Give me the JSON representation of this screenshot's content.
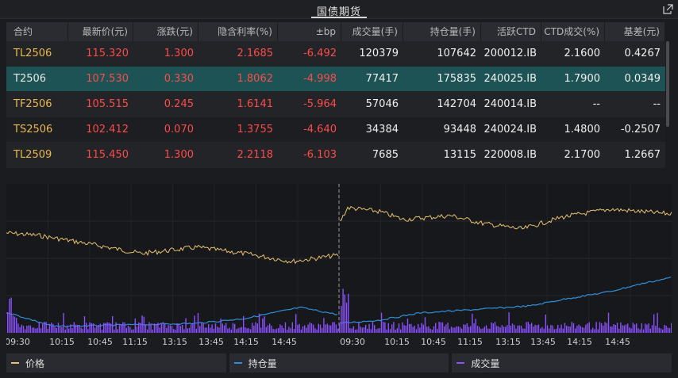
{
  "window": {
    "title": "国债期货",
    "popout_icon": "popout-icon"
  },
  "table": {
    "headers": [
      "合约",
      "最新价(元)",
      "涨跌(元)",
      "隐含利率(%)",
      "±bp",
      "成交量(手)",
      "持仓量(手)",
      "活跃CTD",
      "CTD成交(%)",
      "基差(元)"
    ],
    "rows": [
      [
        "TL2506",
        "115.320",
        "1.300",
        "2.1685",
        "-6.492",
        "120379",
        "107642",
        "200012.IB",
        "2.1600",
        "0.4267"
      ],
      [
        "T2506",
        "107.530",
        "0.330",
        "1.8062",
        "-4.998",
        "77417",
        "175835",
        "240025.IB",
        "1.7900",
        "0.0349"
      ],
      [
        "TF2506",
        "105.515",
        "0.245",
        "1.6141",
        "-5.964",
        "57046",
        "142704",
        "240014.IB",
        "--",
        "--"
      ],
      [
        "TS2506",
        "102.412",
        "0.070",
        "1.3755",
        "-4.640",
        "34384",
        "93448",
        "240024.IB",
        "1.4800",
        "-0.2507"
      ],
      [
        "TL2509",
        "115.450",
        "1.300",
        "2.2118",
        "-6.103",
        "7685",
        "13115",
        "220008.IB",
        "2.1700",
        "1.2667"
      ]
    ],
    "selected_row": 1
  },
  "chart": {
    "x_ticks": [
      "09:30",
      "10:15",
      "10:45",
      "11:15",
      "13:15",
      "13:45",
      "14:15",
      "14:45",
      "09:30",
      "10:15",
      "10:45",
      "11:15",
      "13:15",
      "13:45",
      "14:15",
      "14:45"
    ],
    "series_colors": {
      "price": "#e8c070",
      "open_interest": "#2f8fd8",
      "volume": "#8a52ff"
    }
  },
  "legend": {
    "price": "价格",
    "open_interest": "持仓量",
    "volume": "成交量"
  }
}
